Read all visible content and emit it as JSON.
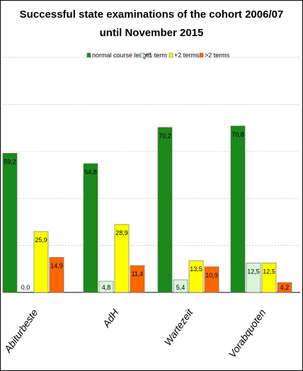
{
  "chart_data": {
    "type": "bar",
    "title": [
      "Successful state examinations of the cohort 2006/07",
      "until November 2015"
    ],
    "categories": [
      "Abiturbeste",
      "AdH",
      "Wartezeit",
      "Vorabquoten"
    ],
    "series": [
      {
        "name": "normal course length",
        "color": "#1a8a1a",
        "values": [
          59.2,
          54.8,
          70.2,
          70.8
        ],
        "labels": [
          "59,2",
          "54,8",
          "70,2",
          "70,8"
        ]
      },
      {
        "name": "+1 term",
        "color": "#d8f5d8",
        "values": [
          0.0,
          4.8,
          5.4,
          12.5
        ],
        "labels": [
          "0,0",
          "4,8",
          "5,4",
          "12,5"
        ]
      },
      {
        "name": "+2 terms",
        "color": "#ffff00",
        "values": [
          25.9,
          28.9,
          13.5,
          12.5
        ],
        "labels": [
          "25,9",
          "28,9",
          "13,5",
          "12,5"
        ]
      },
      {
        "name": ">2 terms",
        "color": "#ff6600",
        "values": [
          14.9,
          11.4,
          10.9,
          4.2
        ],
        "labels": [
          "14,9",
          "11,4",
          "10,9",
          "4,2"
        ]
      }
    ],
    "ylim": [
      0,
      100
    ],
    "grid": true,
    "legend": "top"
  }
}
